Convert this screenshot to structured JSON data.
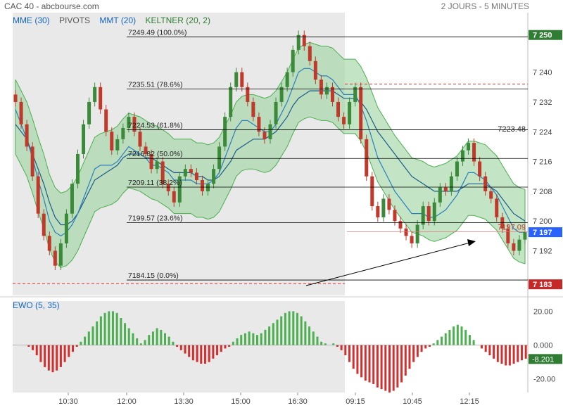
{
  "header": {
    "title": "CAC 40 - abcbourse.com",
    "period": "2 JOURS - 5 MINUTES"
  },
  "legend": [
    {
      "label": "MME (30)",
      "color": "#1565c0"
    },
    {
      "label": "PIVOTS",
      "color": "#555555"
    },
    {
      "label": "MMT (20)",
      "color": "#1565c0"
    },
    {
      "label": "KELTNER (20, 2)",
      "color": "#2e7d32"
    }
  ],
  "indicator_label": "EWO (5, 35)",
  "colors": {
    "up": "#3a8a3a",
    "down": "#c0392b",
    "band_fill": "#a5d6a7",
    "line": "#1a5c8c",
    "shade": "#e9e9e9"
  },
  "chart_data": [
    {
      "type": "line",
      "title": "CAC 40",
      "ylim": [
        7180,
        7256
      ],
      "x_ticks": [
        "10:30",
        "12:00",
        "13:30",
        "15:00",
        "16:30",
        "09:15",
        "10:45",
        "12:15"
      ],
      "y_ticks": [
        7192,
        7200,
        7208,
        7216,
        7224,
        7232,
        7240
      ],
      "fibonacci": [
        {
          "label": "7249.49  (100.0%)",
          "value": 7249.49
        },
        {
          "label": "7235.51  (78.6%)",
          "value": 7235.51
        },
        {
          "label": "7224.53  (61.8%)",
          "value": 7224.53
        },
        {
          "label": "7216.82  (50.0%)",
          "value": 7216.82
        },
        {
          "label": "7209.11  (38.2%)",
          "value": 7209.11
        },
        {
          "label": "7199.57  (23.6%)",
          "value": 7199.57
        },
        {
          "label": "7184.15  (0.0%)",
          "value": 7184.15
        }
      ],
      "price_tags": [
        {
          "label": "7 250",
          "value": 7250,
          "color": "#2e7d32"
        },
        {
          "label": "7 197",
          "value": 7197,
          "color": "#2962ff"
        },
        {
          "label": "7 183",
          "value": 7183,
          "color": "#c62828"
        }
      ],
      "annotations": [
        {
          "label": "7223.48",
          "value": 7223.48
        },
        {
          "label": "7197.09",
          "value": 7197.09
        }
      ],
      "dashed_levels": [
        7236.8,
        7183.2
      ],
      "series": [
        {
          "values": [
            7232,
            7226,
            7220,
            7212,
            7202,
            7196,
            7192,
            7188,
            7194,
            7202,
            7210,
            7218,
            7226,
            7232,
            7236,
            7230,
            7224,
            7219,
            7222,
            7225,
            7228,
            7224,
            7220,
            7218,
            7214,
            7216,
            7210,
            7208,
            7205,
            7212,
            7214,
            7213,
            7211,
            7208,
            7210,
            7214,
            7220,
            7228,
            7236,
            7240,
            7236,
            7232,
            7228,
            7224,
            7222,
            7226,
            7232,
            7236,
            7240,
            7246,
            7250,
            7247,
            7243,
            7238,
            7234,
            7236,
            7232,
            7228,
            7226,
            7232,
            7236,
            7222,
            7212,
            7204,
            7201,
            7206,
            7203,
            7200,
            7198,
            7196,
            7194,
            7199,
            7204,
            7200,
            7205,
            7209,
            7208,
            7212,
            7216,
            7219,
            7221,
            7216,
            7212,
            7208,
            7206,
            7201,
            7198,
            7194,
            7192,
            7195,
            7197
          ]
        },
        {
          "values": [
            7226,
            7224,
            7222,
            7218,
            7214,
            7210,
            7205,
            7201,
            7199,
            7199,
            7200,
            7202,
            7205,
            7208,
            7211,
            7212,
            7213,
            7214,
            7215,
            7217,
            7218,
            7218,
            7218,
            7217,
            7217,
            7216,
            7215,
            7214,
            7213,
            7213,
            7213,
            7213,
            7212,
            7212,
            7211,
            7211,
            7212,
            7214,
            7216,
            7219,
            7220,
            7221,
            7222,
            7222,
            7222,
            7223,
            7224,
            7226,
            7228,
            7231,
            7233,
            7234,
            7235,
            7235,
            7235,
            7235,
            7235,
            7234,
            7233,
            7233,
            7233,
            7232,
            7230,
            7227,
            7224,
            7222,
            7220,
            7218,
            7216,
            7214,
            7212,
            7211,
            7210,
            7209,
            7208,
            7208,
            7208,
            7208,
            7208,
            7209,
            7210,
            7210,
            7210,
            7210,
            7209,
            7208,
            7206,
            7204,
            7202,
            7201,
            7200
          ]
        },
        {
          "values": [
            7230,
            7226,
            7222,
            7217,
            7211,
            7206,
            7200,
            7197,
            7196,
            7197,
            7199,
            7202,
            7206,
            7210,
            7214,
            7215,
            7215,
            7215,
            7216,
            7218,
            7220,
            7219,
            7218,
            7217,
            7215,
            7215,
            7214,
            7213,
            7211,
            7211,
            7211,
            7211,
            7210,
            7210,
            7210,
            7211,
            7213,
            7217,
            7221,
            7225,
            7227,
            7227,
            7226,
            7225,
            7224,
            7224,
            7226,
            7229,
            7232,
            7236,
            7240,
            7241,
            7241,
            7240,
            7239,
            7239,
            7238,
            7236,
            7234,
            7234,
            7234,
            7231,
            7227,
            7222,
            7217,
            7214,
            7211,
            7208,
            7206,
            7204,
            7202,
            7202,
            7202,
            7201,
            7201,
            7202,
            7203,
            7205,
            7207,
            7210,
            7213,
            7213,
            7212,
            7211,
            7209,
            7207,
            7204,
            7201,
            7198,
            7197,
            7197
          ]
        }
      ]
    },
    {
      "type": "bar",
      "title": "EWO (5, 35)",
      "ylim": [
        -28,
        26
      ],
      "y_ticks": [
        20,
        0,
        -20
      ],
      "y_tick_labels": [
        "20.00",
        "0.000",
        "-20.00"
      ],
      "current": {
        "label": "-8.201",
        "value": -8.201
      },
      "values": [
        -1,
        -3,
        -6,
        -10,
        -13,
        -15,
        -16,
        -15,
        -13,
        -10,
        -7,
        -4,
        -1,
        2,
        5,
        8,
        11,
        14,
        17,
        19,
        20,
        20,
        19,
        16,
        13,
        10,
        7,
        4,
        1,
        3,
        6,
        8,
        10,
        9,
        7,
        5,
        2,
        -1,
        -3,
        -5,
        -7,
        -9,
        -10,
        -11,
        -11,
        -10,
        -8,
        -6,
        -4,
        -2,
        -1,
        2,
        4,
        6,
        7,
        8,
        7,
        6,
        7,
        9,
        11,
        13,
        15,
        17,
        19,
        20,
        20,
        19,
        17,
        14,
        11,
        8,
        5,
        2,
        1,
        0,
        1,
        -1,
        -3,
        -6,
        -10,
        -14,
        -17,
        -19,
        -21,
        -22,
        -23,
        -25,
        -26,
        -27,
        -28,
        -27,
        -25,
        -22,
        -18,
        -14,
        -10,
        -7,
        -4,
        -2,
        -1,
        1,
        3,
        5,
        7,
        9,
        11,
        12,
        11,
        9,
        6,
        3,
        0,
        -2,
        -4,
        -6,
        -8,
        -10,
        -11,
        -12,
        -12,
        -11,
        -10,
        -9,
        -8
      ]
    }
  ]
}
